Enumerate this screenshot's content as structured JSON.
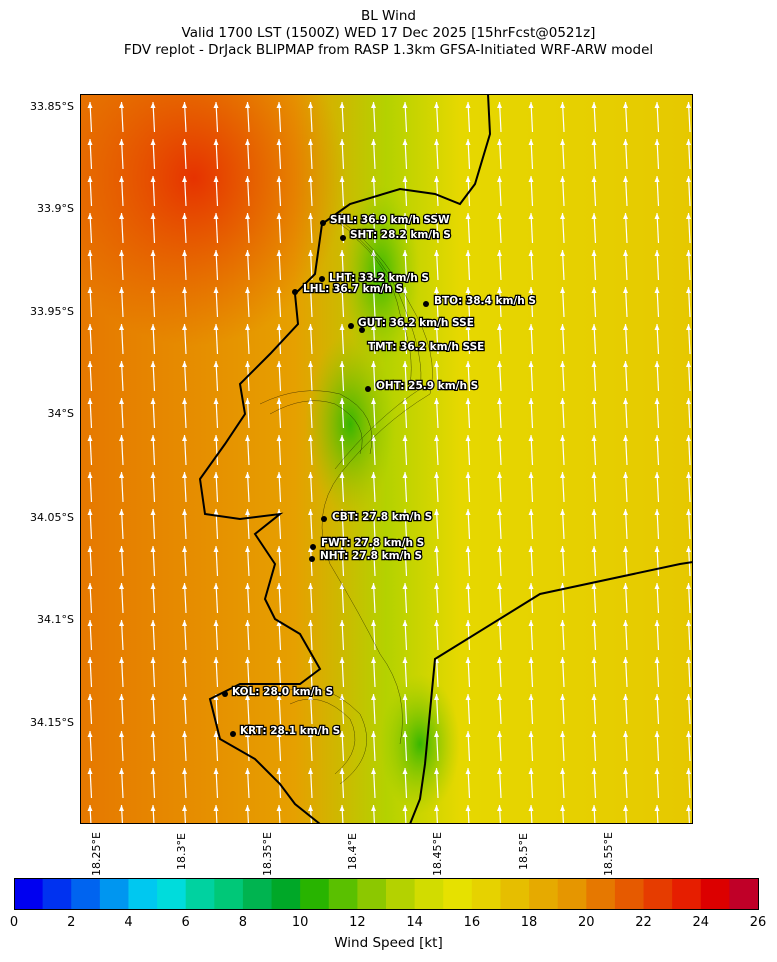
{
  "title": {
    "line1": "BL Wind",
    "line2": "Valid 1700 LST (1500Z) WED 17 Dec 2025 [15hrFcst@0521z]",
    "line3": "FDV replot - DrJack BLIPMAP from RASP 1.3km GFSA-Initiated WRF-ARW model"
  },
  "axes": {
    "lat_labels": [
      "33.85°S",
      "33.9°S",
      "33.95°S",
      "34°S",
      "34.05°S",
      "34.1°S",
      "34.15°S"
    ],
    "lon_labels": [
      "18.25°E",
      "18.3°E",
      "18.35°E",
      "18.4°E",
      "18.45°E",
      "18.5°E",
      "18.55°E"
    ]
  },
  "stations": [
    {
      "label": "SHL: 36.9 km/h SSW"
    },
    {
      "label": "SHT: 28.2 km/h S"
    },
    {
      "label": "LHT: 33.2 km/h S"
    },
    {
      "label": "LHL: 36.7 km/h S"
    },
    {
      "label": "BTO: 38.4 km/h S"
    },
    {
      "label": "GUT: 36.2 km/h SSE"
    },
    {
      "label": "TMT: 36.2 km/h SSE"
    },
    {
      "label": "OHT: 25.9 km/h S"
    },
    {
      "label": "CBT: 27.8 km/h S"
    },
    {
      "label": "FWT: 27.8 km/h S"
    },
    {
      "label": "NHT: 27.8 km/h S"
    },
    {
      "label": "KOL: 28.0 km/h S"
    },
    {
      "label": "KRT: 28.1 km/h S"
    }
  ],
  "colorbar": {
    "label": "Wind Speed [kt]",
    "ticks": [
      "0",
      "2",
      "4",
      "6",
      "8",
      "10",
      "12",
      "14",
      "16",
      "18",
      "20",
      "22",
      "24",
      "26"
    ],
    "colors": [
      "#0000f0",
      "#0032f0",
      "#0064f0",
      "#0096f0",
      "#00c8f0",
      "#00dcdc",
      "#00d2a0",
      "#00c878",
      "#00b450",
      "#00a828",
      "#28b400",
      "#5ac000",
      "#8cc800",
      "#b4d200",
      "#d2dc00",
      "#e6e100",
      "#e6d200",
      "#e6be00",
      "#e6aa00",
      "#e69600",
      "#e67800",
      "#e65a00",
      "#e63c00",
      "#e61e00",
      "#dc0000",
      "#c00028"
    ]
  }
}
